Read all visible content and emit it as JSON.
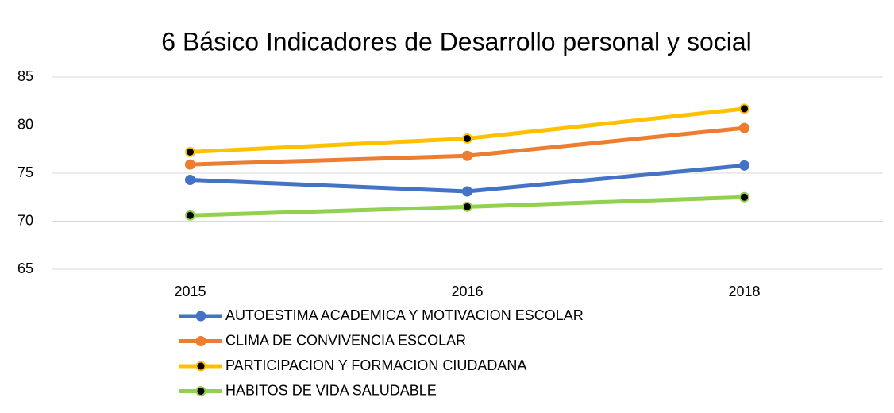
{
  "chart_data": {
    "type": "line",
    "title": "6 Básico Indicadores de Desarrollo personal y social",
    "categories": [
      "2015",
      "2016",
      "2018"
    ],
    "series": [
      {
        "name": "AUTOESTIMA ACADEMICA Y MOTIVACION ESCOLAR",
        "color": "#4472c4",
        "marker_color": "#4472c4",
        "values": [
          74.3,
          73.1,
          75.8
        ]
      },
      {
        "name": "CLIMA DE CONVIVENCIA ESCOLAR",
        "color": "#ed7d31",
        "marker_color": "#ed7d31",
        "values": [
          75.9,
          76.8,
          79.7
        ]
      },
      {
        "name": "PARTICIPACION Y FORMACION CIUDADANA",
        "color": "#ffc000",
        "marker_color": "#000000",
        "values": [
          77.2,
          78.6,
          81.7
        ]
      },
      {
        "name": "HABITOS DE VIDA SALUDABLE",
        "color": "#92d050",
        "marker_color": "#000000",
        "values": [
          70.6,
          71.5,
          72.5
        ]
      }
    ],
    "ylim": [
      65,
      85
    ],
    "yticks": [
      65,
      70,
      75,
      80,
      85
    ],
    "grid": true,
    "legend": "bottom"
  }
}
